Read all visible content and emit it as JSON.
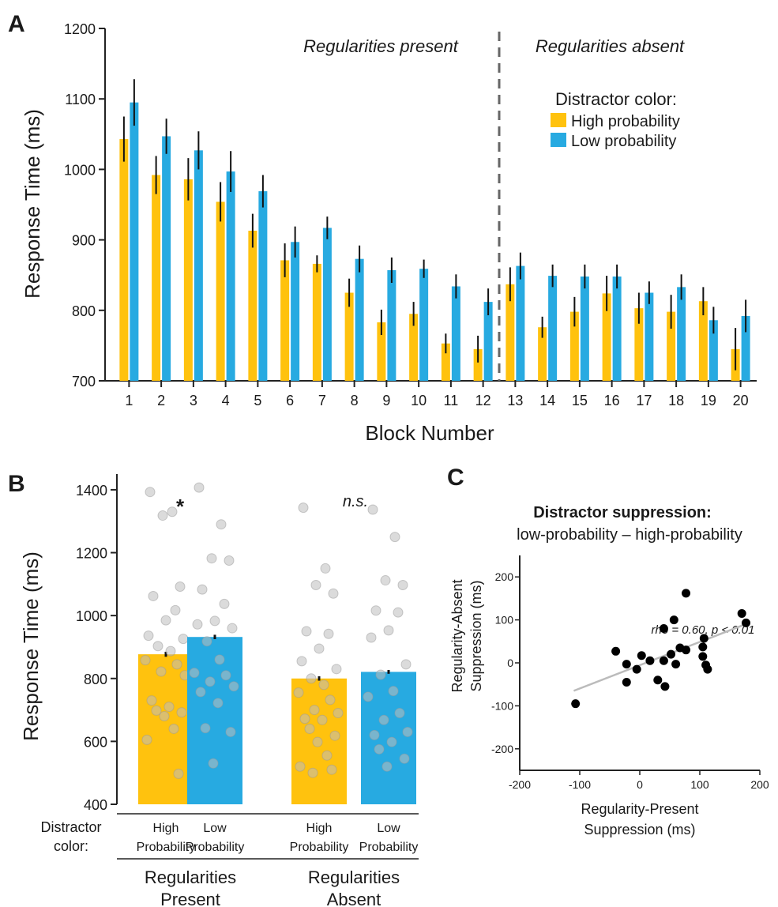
{
  "colors": {
    "high": "#FFC20E",
    "low": "#27AAE1",
    "axis": "#222222",
    "dashed": "#666666",
    "dot": "#BDBDBD",
    "scatter": "#000000",
    "fit": "#BBBBBB"
  },
  "chart_data": [
    {
      "type": "bar",
      "panel": "A",
      "ylabel": "Response Time (ms)",
      "xlabel": "Block Number",
      "ylim": [
        700,
        1200
      ],
      "yticks": [
        700,
        800,
        900,
        1000,
        1100,
        1200
      ],
      "categories": [
        "1",
        "2",
        "3",
        "4",
        "5",
        "6",
        "7",
        "8",
        "9",
        "10",
        "11",
        "12",
        "13",
        "14",
        "15",
        "16",
        "17",
        "18",
        "19",
        "20"
      ],
      "legend_title": "Distractor color:",
      "legend_position": "top-right",
      "section_labels": [
        "Regularities present",
        "Regularities absent"
      ],
      "divider_after_category": "12",
      "series": [
        {
          "name": "High probability",
          "key": "high",
          "values": [
            1043,
            992,
            986,
            954,
            913,
            871,
            866,
            825,
            783,
            795,
            753,
            745,
            837,
            776,
            798,
            824,
            803,
            798,
            813,
            745
          ],
          "errors": [
            32,
            27,
            30,
            28,
            24,
            24,
            12,
            20,
            18,
            17,
            14,
            19,
            24,
            15,
            21,
            25,
            22,
            24,
            20,
            30
          ]
        },
        {
          "name": "Low probability",
          "key": "low",
          "values": [
            1095,
            1047,
            1027,
            997,
            969,
            897,
            917,
            873,
            857,
            859,
            834,
            812,
            863,
            849,
            848,
            848,
            825,
            833,
            786,
            792
          ],
          "errors": [
            33,
            25,
            27,
            29,
            23,
            22,
            16,
            19,
            18,
            13,
            17,
            19,
            19,
            16,
            17,
            17,
            16,
            18,
            19,
            23
          ]
        }
      ]
    },
    {
      "type": "bar",
      "panel": "B",
      "ylabel": "Response Time (ms)",
      "ylim": [
        400,
        1450
      ],
      "yticks": [
        400,
        600,
        800,
        1000,
        1200,
        1400
      ],
      "x_row_label": "Distractor color:",
      "groups": [
        {
          "label": "Regularities Present",
          "annotation": "*"
        },
        {
          "label": "Regularities Absent",
          "annotation": "n.s."
        }
      ],
      "bars": [
        {
          "label": "High Probability",
          "key": "high",
          "group": 0,
          "value": 877,
          "error": 8,
          "points": [
            1393,
            1330,
            1318,
            1092,
            1062,
            1017,
            985,
            936,
            926,
            903,
            887,
            858,
            845,
            822,
            810,
            730,
            710,
            698,
            692,
            680,
            640,
            605,
            497
          ]
        },
        {
          "label": "Low Probability",
          "key": "low",
          "group": 0,
          "value": 932,
          "error": 7,
          "points": [
            1407,
            1290,
            1182,
            1175,
            1083,
            1037,
            983,
            972,
            960,
            918,
            860,
            818,
            810,
            790,
            775,
            757,
            722,
            642,
            630,
            530
          ]
        },
        {
          "label": "High Probability",
          "key": "high",
          "group": 1,
          "value": 800,
          "error": 7,
          "points": [
            1343,
            1150,
            1097,
            1070,
            950,
            942,
            895,
            855,
            830,
            800,
            780,
            755,
            732,
            700,
            690,
            672,
            668,
            640,
            618,
            598,
            555,
            520,
            510,
            500
          ]
        },
        {
          "label": "Low Probability",
          "key": "low",
          "group": 1,
          "value": 821,
          "error": 6,
          "points": [
            1337,
            1250,
            1112,
            1097,
            1016,
            1010,
            953,
            930,
            845,
            812,
            760,
            742,
            690,
            668,
            630,
            620,
            598,
            575,
            545,
            520
          ]
        }
      ]
    },
    {
      "type": "scatter",
      "panel": "C",
      "title": "Distractor suppression:",
      "subtitle": "low-probability – high-probability",
      "xlabel_lines": [
        "Regularity-Present",
        "Suppression (ms)"
      ],
      "ylabel_lines": [
        "Regularity-Absent",
        "Suppression (ms)"
      ],
      "xlim": [
        -200,
        200
      ],
      "ylim": [
        -250,
        250
      ],
      "xticks": [
        -200,
        -100,
        0,
        100,
        200
      ],
      "yticks": [
        -200,
        -100,
        0,
        100,
        200
      ],
      "annotation": "rho = 0.60, p < 0.01",
      "fit": {
        "x1": -110,
        "y1": -65,
        "x2": 180,
        "y2": 92
      },
      "points": [
        [
          -107,
          -95
        ],
        [
          -40,
          27
        ],
        [
          -22,
          -3
        ],
        [
          -22,
          -45
        ],
        [
          -5,
          -15
        ],
        [
          3,
          17
        ],
        [
          17,
          5
        ],
        [
          30,
          -40
        ],
        [
          40,
          80
        ],
        [
          40,
          5
        ],
        [
          42,
          -55
        ],
        [
          52,
          20
        ],
        [
          57,
          100
        ],
        [
          60,
          -3
        ],
        [
          67,
          35
        ],
        [
          77,
          30
        ],
        [
          77,
          162
        ],
        [
          107,
          57
        ],
        [
          105,
          37
        ],
        [
          105,
          15
        ],
        [
          110,
          -5
        ],
        [
          113,
          -15
        ],
        [
          170,
          115
        ],
        [
          177,
          93
        ]
      ]
    }
  ],
  "panel_letters": [
    "A",
    "B",
    "C"
  ]
}
